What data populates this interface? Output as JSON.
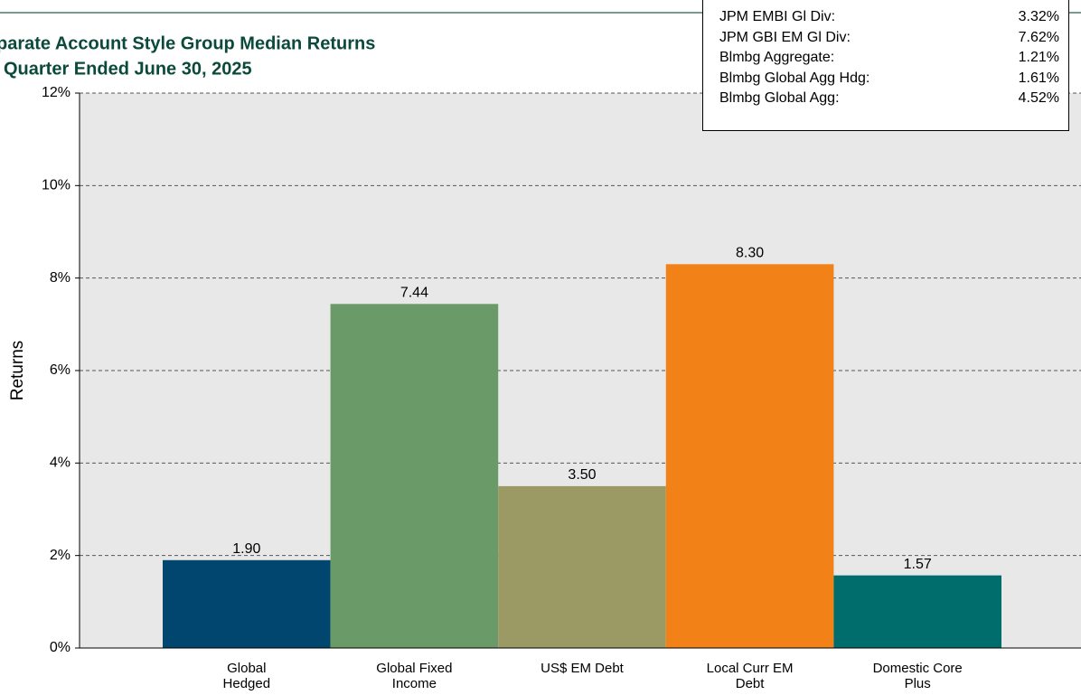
{
  "chart_data": {
    "type": "bar",
    "title": "parate Account Style Group Median Returns",
    "subtitle": "Quarter Ended June 30, 2025",
    "y_label": "Returns",
    "categories": [
      "Global\nHedged",
      "Global Fixed\nIncome",
      "US$ EM Debt",
      "Local Curr EM\nDebt",
      "Domestic Core\nPlus"
    ],
    "values": [
      1.9,
      7.44,
      3.5,
      8.3,
      1.57
    ],
    "value_labels": [
      "1.90",
      "7.44",
      "3.50",
      "8.30",
      "1.57"
    ],
    "colors": [
      "#00466e",
      "#699a67",
      "#9c9a64",
      "#f28118",
      "#006d6d"
    ],
    "ylim": [
      0,
      12
    ],
    "yticks": [
      {
        "value": 0,
        "label": "0%"
      },
      {
        "value": 2,
        "label": "2%"
      },
      {
        "value": 4,
        "label": "4%"
      },
      {
        "value": 6,
        "label": "6%"
      },
      {
        "value": 8,
        "label": "8%"
      },
      {
        "value": 10,
        "label": "10%"
      },
      {
        "value": 12,
        "label": "12%"
      }
    ],
    "grid": true,
    "index_box": [
      {
        "label": "JPM EMBI Gl Div:",
        "value": "3.32%"
      },
      {
        "label": "JPM GBI EM Gl Div:",
        "value": "7.62%"
      },
      {
        "label": "Blmbg Aggregate:",
        "value": "1.21%"
      },
      {
        "label": "Blmbg Global Agg Hdg:",
        "value": "1.61%"
      },
      {
        "label": "Blmbg Global Agg:",
        "value": "4.52%"
      }
    ]
  }
}
